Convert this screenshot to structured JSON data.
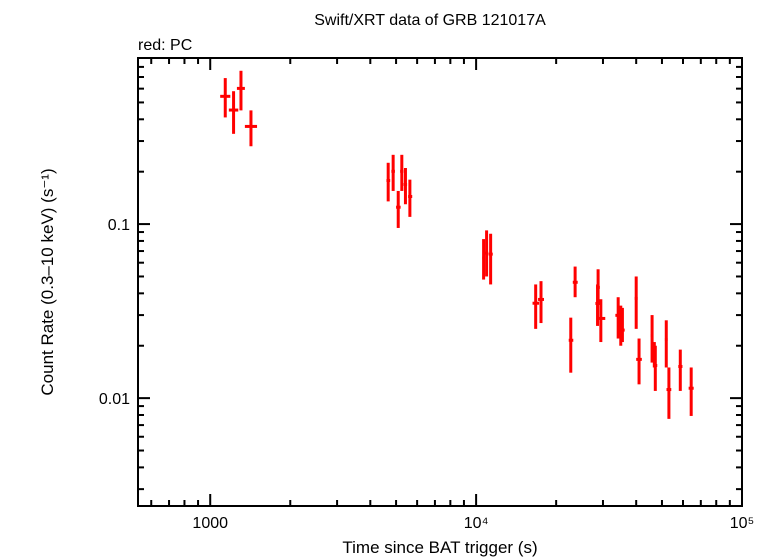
{
  "chart_data": {
    "type": "scatter",
    "title": "Swift/XRT data of GRB 121017A",
    "subtitle": "red: PC",
    "xlabel": "Time since BAT trigger (s)",
    "ylabel": "Count Rate (0.3–10 keV) (s⁻¹)",
    "xscale": "log",
    "yscale": "log",
    "xlim": [
      535,
      100000
    ],
    "ylim": [
      0.0024,
      0.9
    ],
    "x_tick_labels": [
      {
        "value": 1000,
        "label": "1000"
      },
      {
        "value": 10000,
        "label": "10⁴"
      },
      {
        "value": 100000,
        "label": "10⁵"
      }
    ],
    "y_tick_labels": [
      {
        "value": 0.1,
        "label": "0.1"
      },
      {
        "value": 0.01,
        "label": "0.01"
      }
    ],
    "grid": false,
    "series_color": "#ff0000",
    "axis_color": "#000000",
    "point_columns": [
      "x",
      "y",
      "x_low",
      "x_high",
      "y_low",
      "y_high"
    ],
    "points": [
      [
        1139,
        0.542,
        1090,
        1190,
        0.41,
        0.69
      ],
      [
        1224,
        0.452,
        1175,
        1275,
        0.33,
        0.58
      ],
      [
        1305,
        0.602,
        1260,
        1350,
        0.45,
        0.76
      ],
      [
        1423,
        0.364,
        1350,
        1500,
        0.28,
        0.45
      ],
      [
        4670,
        0.178,
        4600,
        4750,
        0.135,
        0.225
      ],
      [
        4875,
        0.201,
        4800,
        4950,
        0.155,
        0.25
      ],
      [
        5094,
        0.125,
        5000,
        5200,
        0.095,
        0.155
      ],
      [
        5255,
        0.201,
        5180,
        5330,
        0.155,
        0.25
      ],
      [
        5423,
        0.169,
        5340,
        5500,
        0.13,
        0.21
      ],
      [
        5635,
        0.144,
        5550,
        5750,
        0.11,
        0.18
      ],
      [
        10670,
        0.0638,
        10550,
        10800,
        0.048,
        0.082
      ],
      [
        10950,
        0.0681,
        10800,
        11100,
        0.05,
        0.092
      ],
      [
        11340,
        0.0672,
        11150,
        11550,
        0.045,
        0.088
      ],
      [
        16750,
        0.0351,
        16300,
        17250,
        0.025,
        0.045
      ],
      [
        17540,
        0.0369,
        17100,
        18000,
        0.027,
        0.047
      ],
      [
        22700,
        0.0215,
        22300,
        23200,
        0.014,
        0.029
      ],
      [
        23570,
        0.0463,
        23100,
        24100,
        0.038,
        0.057
      ],
      [
        28620,
        0.035,
        28100,
        29200,
        0.026,
        0.045
      ],
      [
        28760,
        0.0433,
        28300,
        29200,
        0.035,
        0.055
      ],
      [
        29450,
        0.0287,
        28800,
        30600,
        0.021,
        0.037
      ],
      [
        34220,
        0.0299,
        33400,
        35000,
        0.022,
        0.038
      ],
      [
        35000,
        0.0263,
        34300,
        35700,
        0.02,
        0.034
      ],
      [
        35500,
        0.0246,
        34900,
        36200,
        0.021,
        0.033
      ],
      [
        40000,
        0.0374,
        39500,
        40500,
        0.025,
        0.05
      ],
      [
        41000,
        0.0167,
        40000,
        42000,
        0.012,
        0.022
      ],
      [
        45900,
        0.0229,
        45400,
        46400,
        0.016,
        0.03
      ],
      [
        46800,
        0.018,
        46300,
        47300,
        0.015,
        0.021
      ],
      [
        47200,
        0.0154,
        46500,
        48000,
        0.011,
        0.02
      ],
      [
        51900,
        0.0217,
        51300,
        52500,
        0.015,
        0.028
      ],
      [
        53100,
        0.0112,
        52000,
        54200,
        0.0076,
        0.015
      ],
      [
        58600,
        0.0152,
        57600,
        59700,
        0.011,
        0.019
      ],
      [
        64400,
        0.0114,
        63000,
        65800,
        0.0079,
        0.015
      ]
    ]
  }
}
